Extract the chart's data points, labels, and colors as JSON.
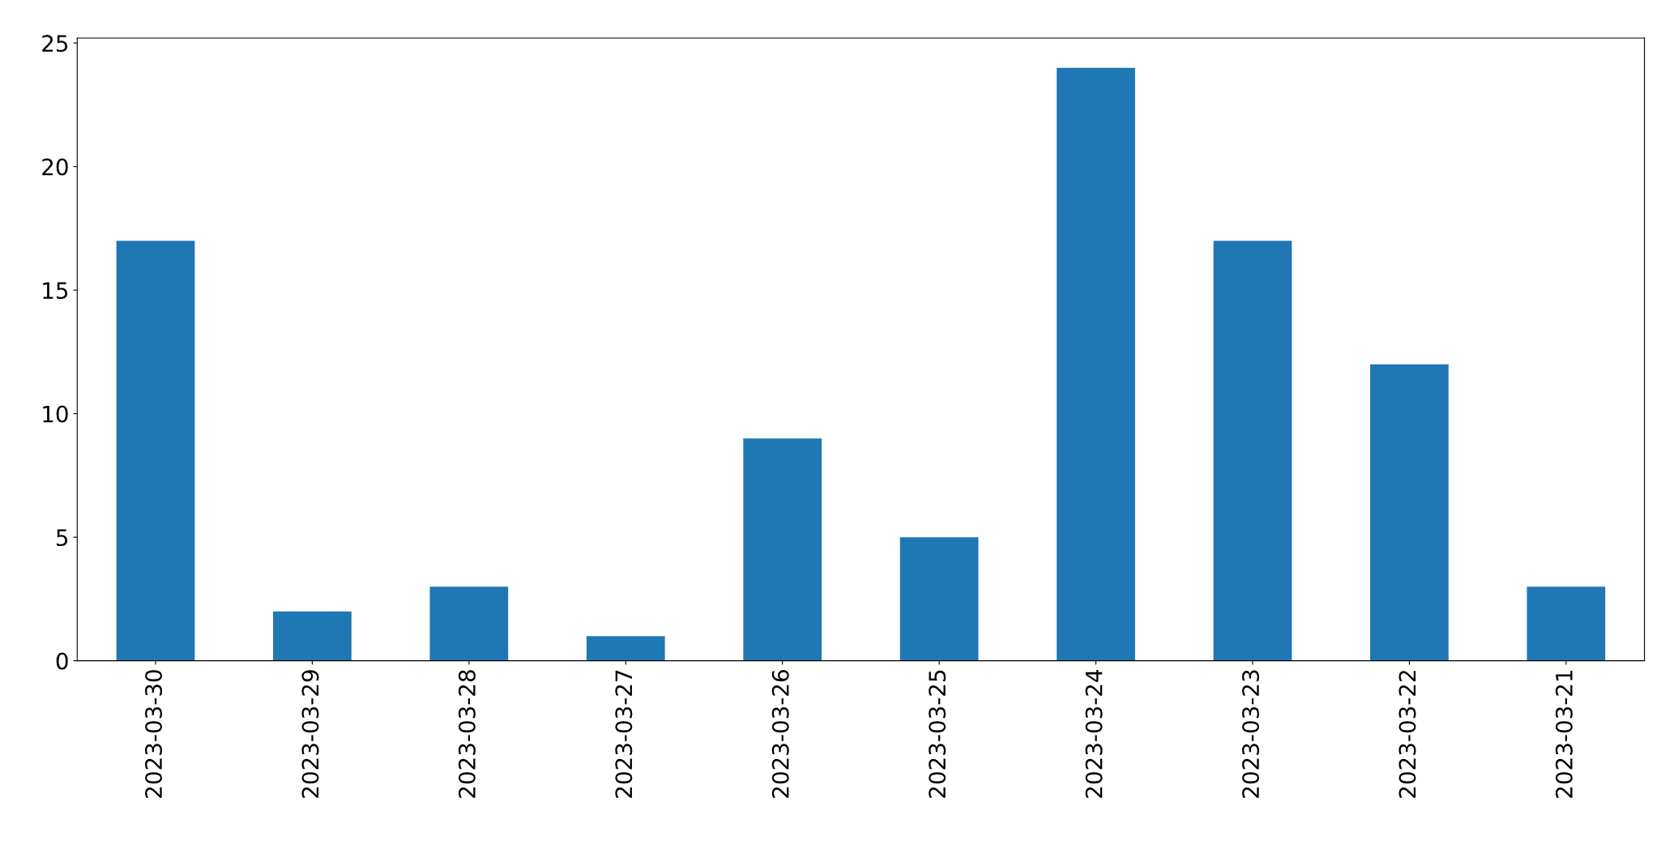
{
  "chart_data": {
    "type": "bar",
    "categories": [
      "2023-03-30",
      "2023-03-29",
      "2023-03-28",
      "2023-03-27",
      "2023-03-26",
      "2023-03-25",
      "2023-03-24",
      "2023-03-23",
      "2023-03-22",
      "2023-03-21"
    ],
    "values": [
      17,
      2,
      3,
      1,
      9,
      5,
      24,
      17,
      12,
      3
    ],
    "color": "#1f77b4",
    "ylim": [
      0,
      25.2
    ],
    "yticks": [
      0,
      5,
      10,
      15,
      20,
      25
    ],
    "grid": false,
    "legend": false
  }
}
